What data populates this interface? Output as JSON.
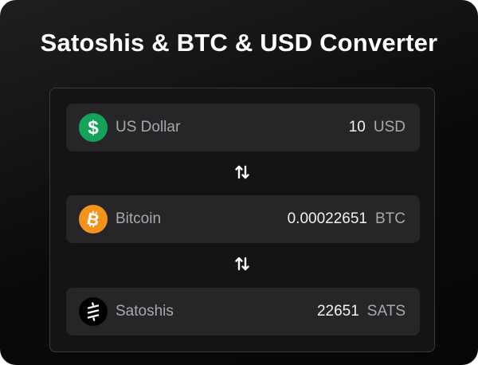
{
  "title": "Satoshis & BTC & USD Converter",
  "colors": {
    "usd": "#15a35a",
    "btc": "#f4931b",
    "sats": "#000000",
    "row_bg": "#262628"
  },
  "rows": [
    {
      "name": "US Dollar",
      "amount": "10",
      "unit": "USD",
      "icon": "dollar-icon"
    },
    {
      "name": "Bitcoin",
      "amount": "0.00022651",
      "unit": "BTC",
      "icon": "bitcoin-icon"
    },
    {
      "name": "Satoshis",
      "amount": "22651",
      "unit": "SATS",
      "icon": "satoshi-icon"
    }
  ],
  "swap_icon": "swap-vertical-icon"
}
